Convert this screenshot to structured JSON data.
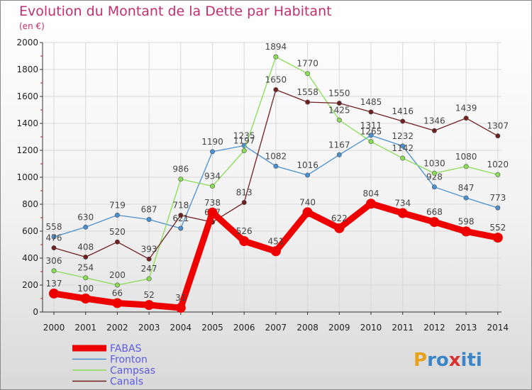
{
  "chart_data": {
    "type": "line",
    "title": "Evolution du Montant de la Dette par Habitant",
    "subtitle": "(en €)",
    "x": [
      "2000",
      "2001",
      "2002",
      "2003",
      "2004",
      "2005",
      "2006",
      "2007",
      "2008",
      "2009",
      "2010",
      "2011",
      "2012",
      "2013",
      "2014"
    ],
    "ylim": [
      0,
      2000
    ],
    "yticks": [
      0,
      200,
      400,
      600,
      800,
      1000,
      1200,
      1400,
      1600,
      1800,
      2000
    ],
    "grid": true,
    "legend_position": "bottom-left",
    "series": [
      {
        "name": "FABAS",
        "color": "#ee0000",
        "emphasis": true,
        "values": [
          137,
          100,
          66,
          52,
          31,
          738,
          526,
          451,
          740,
          622,
          804,
          734,
          668,
          598,
          552
        ]
      },
      {
        "name": "Fronton",
        "color": "#4a90d0",
        "values": [
          558,
          630,
          719,
          687,
          621,
          1190,
          1235,
          1082,
          1016,
          1167,
          1311,
          1232,
          928,
          847,
          773
        ]
      },
      {
        "name": "Campsas",
        "color": "#88dd55",
        "values": [
          306,
          254,
          200,
          247,
          986,
          934,
          1197,
          1894,
          1770,
          1425,
          1265,
          1142,
          1030,
          1080,
          1020
        ]
      },
      {
        "name": "Canals",
        "color": "#702020",
        "values": [
          476,
          408,
          520,
          393,
          718,
          667,
          813,
          1650,
          1558,
          1550,
          1485,
          1416,
          1346,
          1439,
          1307
        ]
      }
    ]
  },
  "brand": {
    "text": "Proxiti",
    "letters": [
      "P",
      "r",
      "o",
      "x",
      "i",
      "t",
      "i"
    ],
    "colors": [
      "#e8a21c",
      "#3a86c8",
      "#3a86c8",
      "#d93030",
      "#3a86c8",
      "#3a86c8",
      "#3a86c8"
    ]
  }
}
